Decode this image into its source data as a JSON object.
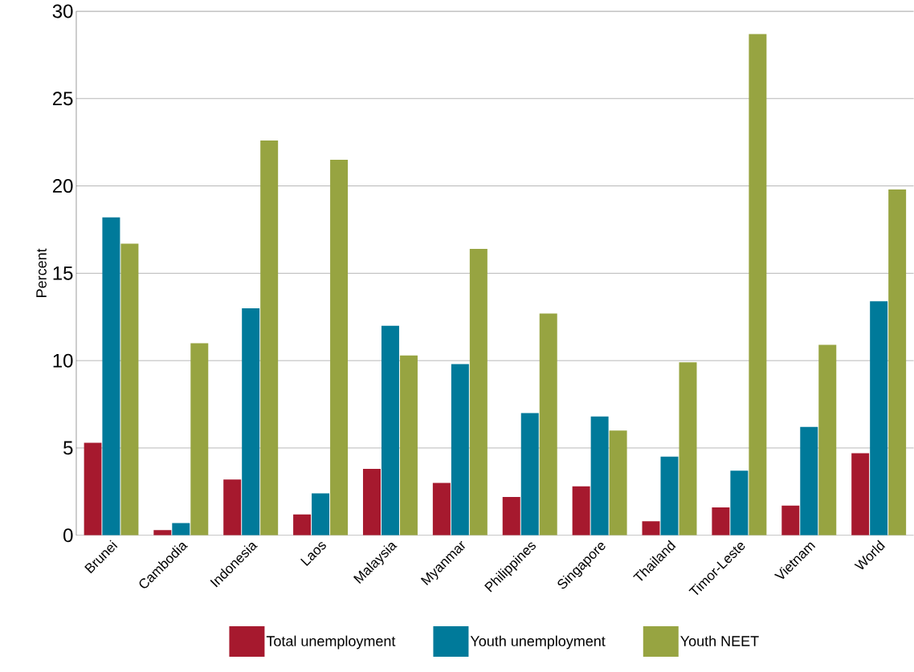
{
  "chart_data": {
    "type": "bar",
    "ylabel": "Percent",
    "categories": [
      "Brunei",
      "Cambodia",
      "Indonesia",
      "Laos",
      "Malaysia",
      "Myanmar",
      "Philippines",
      "Singapore",
      "Thailand",
      "Timor-Leste",
      "Vietnam",
      "World"
    ],
    "series": [
      {
        "name": "Total unemployment",
        "color": "#a6192e",
        "values": [
          5.3,
          0.3,
          3.2,
          1.2,
          3.8,
          3.0,
          2.2,
          2.8,
          0.8,
          1.6,
          1.7,
          4.7
        ]
      },
      {
        "name": "Youth unemployment",
        "color": "#007a9a",
        "values": [
          18.2,
          0.7,
          13.0,
          2.4,
          12.0,
          9.8,
          7.0,
          6.8,
          4.5,
          3.7,
          6.2,
          13.4
        ]
      },
      {
        "name": "Youth NEET",
        "color": "#97a441",
        "values": [
          16.7,
          11.0,
          22.6,
          21.5,
          10.3,
          16.4,
          12.7,
          6.0,
          9.9,
          28.7,
          10.9,
          19.8
        ]
      }
    ],
    "ylim": [
      0,
      30
    ],
    "yticks": [
      0,
      5,
      10,
      15,
      20,
      25,
      30
    ],
    "grid": "y",
    "legend": "bottom"
  }
}
